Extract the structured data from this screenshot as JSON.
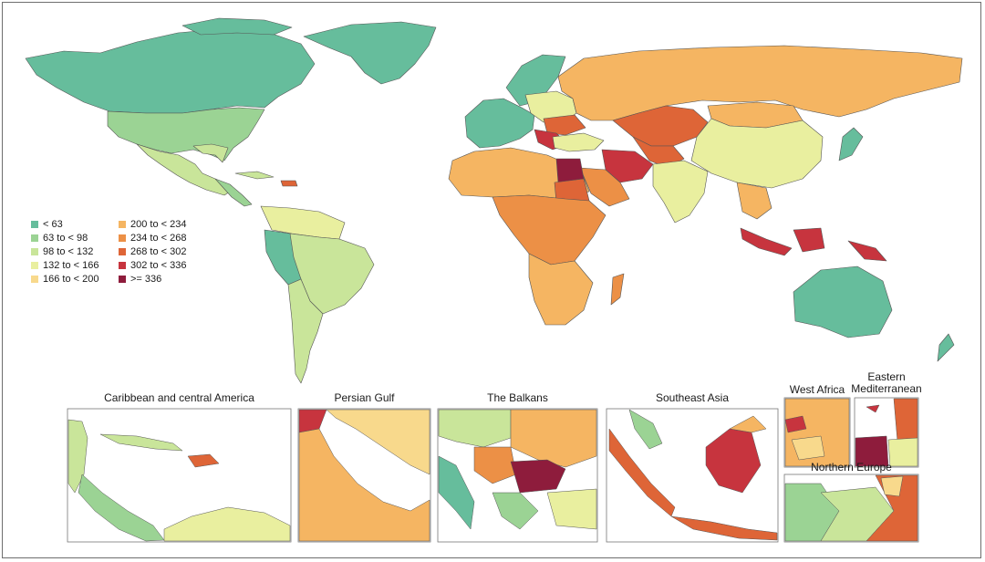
{
  "colors": {
    "c1": "#66bd9c",
    "c2": "#9bd394",
    "c3": "#c9e59a",
    "c4": "#e9ef9f",
    "c5": "#f8d98c",
    "c6": "#f5b562",
    "c7": "#ec9046",
    "c8": "#de6537",
    "c9": "#c7343e",
    "c10": "#8e1c3c",
    "ocean": "#ffffff",
    "border": "#555555"
  },
  "legend": [
    {
      "label": "< 63",
      "color": "#66bd9c"
    },
    {
      "label": "63 to < 98",
      "color": "#9bd394"
    },
    {
      "label": "98 to < 132",
      "color": "#c9e59a"
    },
    {
      "label": "132 to < 166",
      "color": "#e9ef9f"
    },
    {
      "label": "166 to < 200",
      "color": "#f8d98c"
    },
    {
      "label": "200 to < 234",
      "color": "#f5b562"
    },
    {
      "label": "234 to < 268",
      "color": "#ec9046"
    },
    {
      "label": "268 to < 302",
      "color": "#de6537"
    },
    {
      "label": "302 to < 336",
      "color": "#c7343e"
    },
    {
      "label": ">= 336",
      "color": "#8e1c3c"
    }
  ],
  "insets": [
    {
      "title": "Caribbean and central America"
    },
    {
      "title": "Persian Gulf"
    },
    {
      "title": "The Balkans"
    },
    {
      "title": "Southeast Asia"
    },
    {
      "title": "West Africa"
    },
    {
      "title": "Eastern Mediterranean"
    },
    {
      "title": "Northern Europe"
    }
  ]
}
